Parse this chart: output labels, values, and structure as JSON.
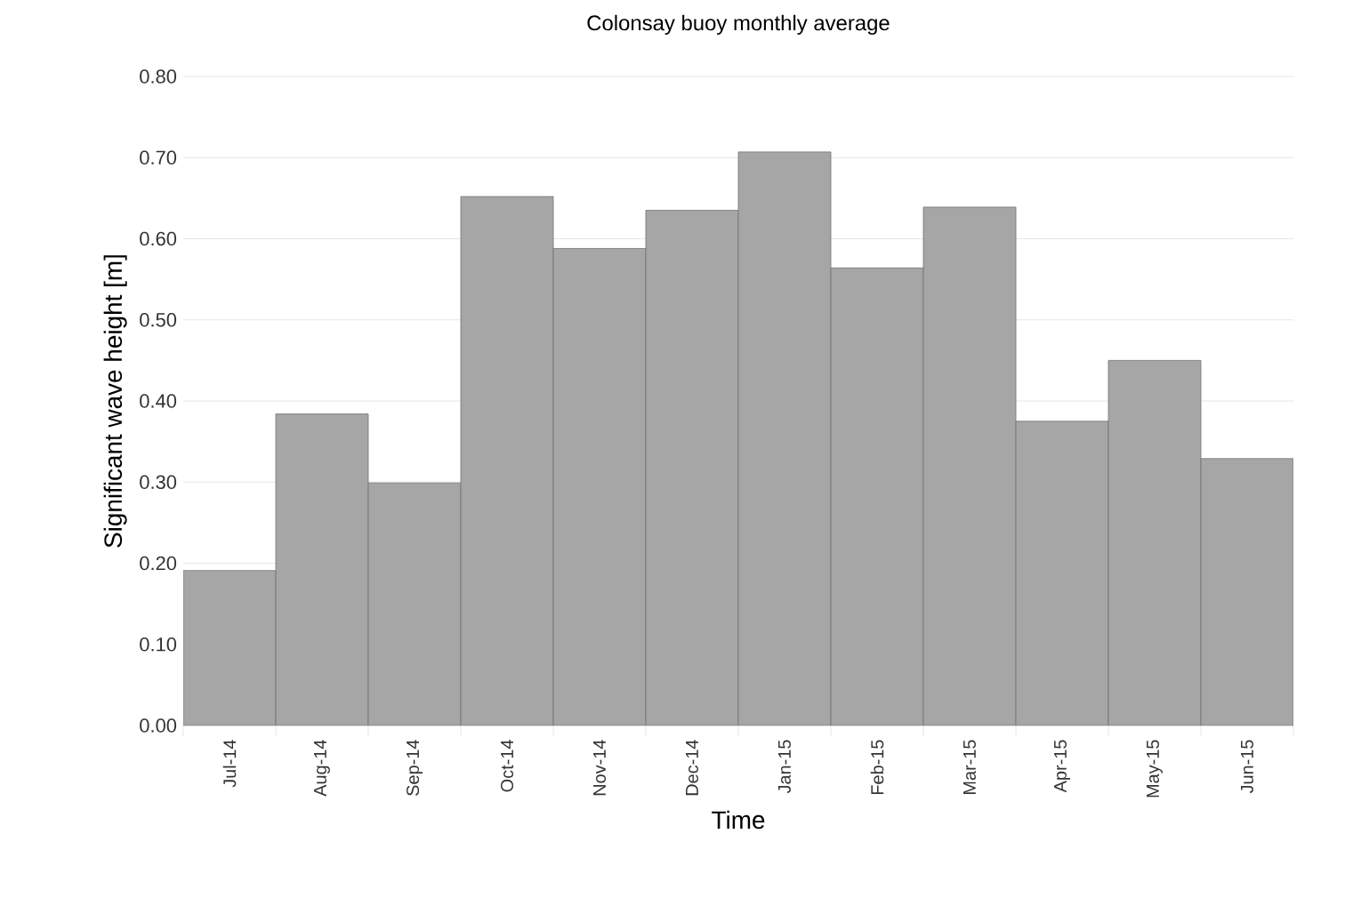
{
  "chart_data": {
    "type": "bar",
    "title": "Colonsay buoy monthly average",
    "xlabel": "Time",
    "ylabel": "Significant wave height [m]",
    "categories": [
      "Jul-14",
      "Aug-14",
      "Sep-14",
      "Oct-14",
      "Nov-14",
      "Dec-14",
      "Jan-15",
      "Feb-15",
      "Mar-15",
      "Apr-15",
      "May-15",
      "Jun-15"
    ],
    "values": [
      0.191,
      0.384,
      0.299,
      0.652,
      0.588,
      0.635,
      0.707,
      0.564,
      0.639,
      0.375,
      0.45,
      0.329
    ],
    "color": "#a6a6a6",
    "ylim": [
      0,
      0.8
    ],
    "yticks": [
      {
        "value": 0,
        "label": "0.00"
      },
      {
        "value": 0.1,
        "label": "0.10"
      },
      {
        "value": 0.2,
        "label": "0.20"
      },
      {
        "value": 0.3,
        "label": "0.30"
      },
      {
        "value": 0.4,
        "label": "0.40"
      },
      {
        "value": 0.5,
        "label": "0.50"
      },
      {
        "value": 0.6,
        "label": "0.60"
      },
      {
        "value": 0.7,
        "label": "0.70"
      },
      {
        "value": 0.8,
        "label": "0.80"
      }
    ],
    "grid": "y"
  }
}
